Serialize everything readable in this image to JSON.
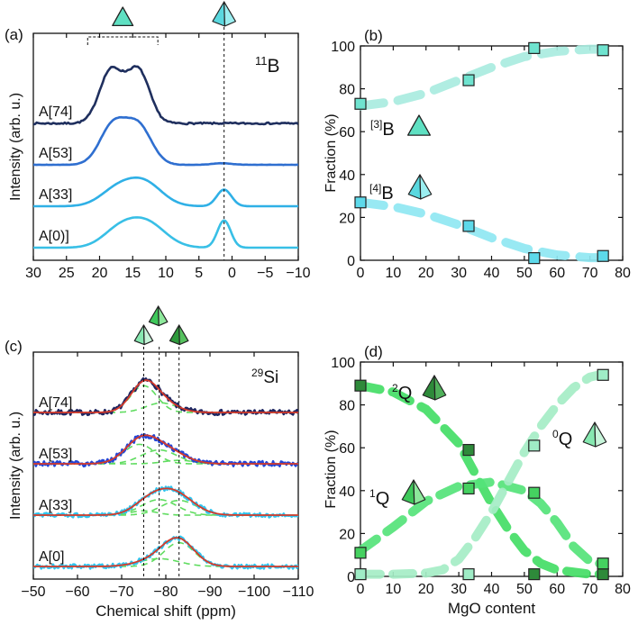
{
  "chart_data": [
    {
      "panel": "(a)",
      "type": "line",
      "nucleus_label": {
        "sup": "11",
        "base": "B"
      },
      "xlabel": "",
      "ylabel": "Intensity (arb. u.)",
      "xlim": [
        30,
        -10
      ],
      "xticks": [
        30,
        25,
        20,
        15,
        10,
        5,
        0,
        -5,
        -10
      ],
      "xtick_labels": [
        "30",
        "25",
        "20",
        "15",
        "10",
        "5",
        "0",
        "−5",
        "−10"
      ],
      "marker_line_x": 1.2,
      "bracket_x": [
        21.8,
        11.2
      ],
      "series": [
        {
          "name": "A[74]",
          "color": "#1f2f5e",
          "offset": 3,
          "peaks": [
            [
              18.6,
              0.97,
              1.6
            ],
            [
              13.9,
              0.97,
              1.6
            ],
            [
              16.2,
              0.72,
              2.4
            ]
          ],
          "noise": 0.022
        },
        {
          "name": "A[53]",
          "color": "#2f6fd0",
          "offset": 2,
          "peaks": [
            [
              18.2,
              0.78,
              1.9
            ],
            [
              13.9,
              0.74,
              1.9
            ],
            [
              16.0,
              0.45,
              2.5
            ],
            [
              1.5,
              0.04,
              1.5
            ]
          ],
          "noise": 0.004
        },
        {
          "name": "A[33]",
          "color": "#2fb0e6",
          "offset": 1,
          "peaks": [
            [
              17.5,
              0.4,
              2.5
            ],
            [
              13.3,
              0.62,
              2.7
            ],
            [
              1.2,
              0.44,
              1.1
            ]
          ],
          "noise": 0
        },
        {
          "name": "A[0)]",
          "color": "#38bfe6",
          "offset": 0,
          "peaks": [
            [
              17.2,
              0.4,
              2.5
            ],
            [
              13.0,
              0.66,
              2.9
            ],
            [
              1.2,
              0.72,
              1.0
            ]
          ],
          "noise": 0
        }
      ]
    },
    {
      "panel": "(b)",
      "type": "scatter",
      "xlabel": "",
      "ylabel": "Fraction (%)",
      "xlim": [
        0,
        80
      ],
      "ylim": [
        0,
        100
      ],
      "xticks": [
        0,
        10,
        20,
        30,
        40,
        50,
        60,
        70,
        80
      ],
      "yticks": [
        0,
        20,
        40,
        60,
        80,
        100
      ],
      "series": [
        {
          "name": "B3",
          "label_sup": "[3]",
          "label_base": "B",
          "x": [
            0,
            33,
            53,
            74
          ],
          "y": [
            73,
            84,
            99,
            98
          ],
          "marker_color": "#6fe3cf",
          "fit_color": "#a9ece0",
          "fit": [
            [
              0,
              72
            ],
            [
              10,
              74
            ],
            [
              20,
              78
            ],
            [
              30,
              84
            ],
            [
              40,
              90
            ],
            [
              50,
              95
            ],
            [
              60,
              97.5
            ],
            [
              70,
              98.5
            ],
            [
              73,
              98.5
            ]
          ]
        },
        {
          "name": "B4",
          "label_sup": "[4]",
          "label_base": "B",
          "x": [
            0,
            33,
            53,
            74
          ],
          "y": [
            27,
            16,
            1,
            2
          ],
          "marker_color": "#5dd9ea",
          "fit_color": "#8fe7f2",
          "fit": [
            [
              0,
              27
            ],
            [
              10,
              25
            ],
            [
              20,
              21.5
            ],
            [
              30,
              16.5
            ],
            [
              40,
              10.5
            ],
            [
              50,
              5.5
            ],
            [
              60,
              2.5
            ],
            [
              70,
              1.2
            ],
            [
              73,
              1.2
            ]
          ]
        }
      ]
    },
    {
      "panel": "(c)",
      "type": "line",
      "nucleus_label": {
        "sup": "29",
        "base": "Si"
      },
      "xlabel": "Chemical shift (ppm)",
      "ylabel": "Intensity (arb. u.)",
      "xlim": [
        -50,
        -110
      ],
      "xticks": [
        -50,
        -60,
        -70,
        -80,
        -90,
        -100,
        -110
      ],
      "xtick_labels": [
        "−50",
        "−60",
        "−70",
        "−80",
        "−90",
        "−100",
        "−110"
      ],
      "marker_lines_x": [
        -75,
        -78.5,
        -83
      ],
      "series": [
        {
          "name": "A[74]",
          "color": "#1f2660",
          "offset": 3,
          "peaks": [
            [
              -75,
              0.62,
              3.0
            ],
            [
              -79,
              0.22,
              3.5
            ]
          ],
          "noise": 0.06
        },
        {
          "name": "A[53]",
          "color": "#2446d6",
          "offset": 2,
          "peaks": [
            [
              -74,
              0.45,
              3.5
            ],
            [
              -78.5,
              0.32,
              4.0
            ],
            [
              -83,
              0.08,
              3.5
            ]
          ],
          "noise": 0.06
        },
        {
          "name": "A[33]",
          "color": "#30c4ee",
          "offset": 1,
          "peaks": [
            [
              -75,
              0.1,
              3.0
            ],
            [
              -78.5,
              0.36,
              4.0
            ],
            [
              -83,
              0.34,
              4.0
            ]
          ],
          "noise": 0.05
        },
        {
          "name": "A[0]",
          "color": "#30c4ee",
          "offset": 0,
          "peaks": [
            [
              -78.5,
              0.18,
              4.5
            ],
            [
              -83,
              0.55,
              3.5
            ]
          ],
          "noise": 0.05
        }
      ]
    },
    {
      "panel": "(d)",
      "type": "scatter",
      "xlabel": "MgO content",
      "ylabel": "Fraction (%)",
      "xlim": [
        0,
        80
      ],
      "ylim": [
        0,
        100
      ],
      "xticks": [
        0,
        10,
        20,
        30,
        40,
        50,
        60,
        70,
        80
      ],
      "yticks": [
        0,
        20,
        40,
        60,
        80,
        100
      ],
      "series": [
        {
          "name": "Q2",
          "label_sup": "2",
          "label_base": "Q",
          "x": [
            0,
            33,
            53,
            74
          ],
          "y": [
            89,
            59,
            1,
            1
          ],
          "marker_color": "#2e8a3a",
          "fit_color": "#44dd66",
          "fit": [
            [
              0,
              89
            ],
            [
              10,
              86
            ],
            [
              20,
              78
            ],
            [
              30,
              62
            ],
            [
              35,
              48
            ],
            [
              40,
              34
            ],
            [
              45,
              22
            ],
            [
              50,
              12
            ],
            [
              55,
              6
            ],
            [
              60,
              3
            ],
            [
              70,
              1
            ],
            [
              73,
              1
            ]
          ]
        },
        {
          "name": "Q1",
          "label_sup": "1",
          "label_base": "Q",
          "x": [
            0,
            33,
            53,
            74
          ],
          "y": [
            11,
            41,
            39,
            6
          ],
          "marker_color": "#45d160",
          "fit_color": "#55e37a",
          "fit": [
            [
              0,
              12
            ],
            [
              10,
              23
            ],
            [
              20,
              35
            ],
            [
              30,
              42
            ],
            [
              40,
              44
            ],
            [
              50,
              40
            ],
            [
              55,
              34
            ],
            [
              60,
              25
            ],
            [
              65,
              14
            ],
            [
              70,
              7
            ],
            [
              73,
              6
            ]
          ]
        },
        {
          "name": "Q0",
          "label_sup": "0",
          "label_base": "Q",
          "x": [
            0,
            33,
            53,
            74
          ],
          "y": [
            1,
            1,
            61,
            94
          ],
          "marker_color": "#9fecc6",
          "fit_color": "#a5edc6",
          "fit": [
            [
              0,
              1
            ],
            [
              10,
              1
            ],
            [
              20,
              1.5
            ],
            [
              25,
              3
            ],
            [
              30,
              8
            ],
            [
              35,
              18
            ],
            [
              40,
              30
            ],
            [
              45,
              44
            ],
            [
              50,
              58
            ],
            [
              55,
              70
            ],
            [
              60,
              80
            ],
            [
              65,
              88
            ],
            [
              70,
              93
            ],
            [
              73,
              94
            ]
          ]
        }
      ]
    }
  ]
}
